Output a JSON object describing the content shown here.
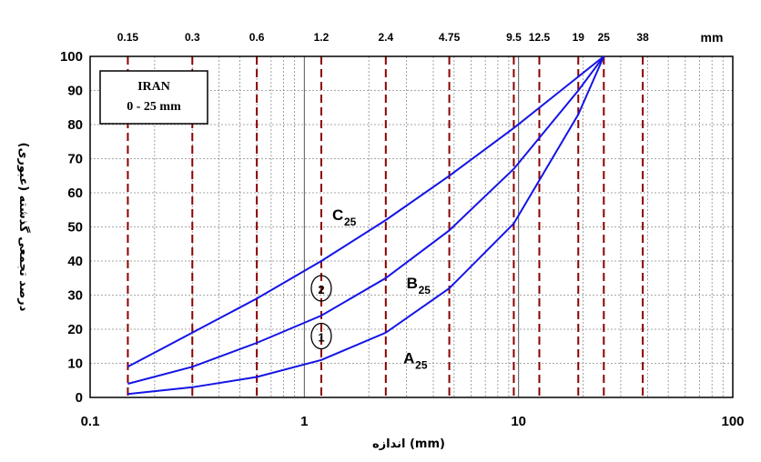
{
  "chart_data": {
    "type": "line",
    "x_scale": "log",
    "xlim": [
      0.1,
      100
    ],
    "ylim": [
      0,
      100
    ],
    "xticks": [
      "0.1",
      "1",
      "10",
      "100"
    ],
    "yticks": [
      "0",
      "10",
      "20",
      "30",
      "40",
      "50",
      "60",
      "70",
      "80",
      "90",
      "100"
    ],
    "xlabel": "اندازه (mm)",
    "ylabel": "درصد تجمعی گذشته (عبوری)",
    "top_unit": "mm",
    "grid": true,
    "sieve_sizes": [
      {
        "label": "0.15",
        "x": 0.15
      },
      {
        "label": "0.3",
        "x": 0.3
      },
      {
        "label": "0.6",
        "x": 0.6
      },
      {
        "label": "1.2",
        "x": 1.2
      },
      {
        "label": "2.4",
        "x": 2.4
      },
      {
        "label": "4.75",
        "x": 4.75
      },
      {
        "label": "9.5",
        "x": 9.5
      },
      {
        "label": "12.5",
        "x": 12.5
      },
      {
        "label": "19",
        "x": 19
      },
      {
        "label": "25",
        "x": 25
      },
      {
        "label": "38",
        "x": 38
      }
    ],
    "legend_box": {
      "line1": "IRAN",
      "line2": "0 - 25 mm",
      "placement": "top-left"
    },
    "series": [
      {
        "name": "C",
        "sub": "25",
        "color": "#1414e6",
        "x": [
          0.15,
          0.3,
          0.6,
          1.2,
          2.4,
          4.75,
          9.5,
          25
        ],
        "y": [
          9,
          19,
          29,
          40,
          52,
          65,
          79,
          100
        ]
      },
      {
        "name": "B",
        "sub": "25",
        "color": "#1414e6",
        "x": [
          0.15,
          0.3,
          0.6,
          1.2,
          2.4,
          4.75,
          9.5,
          19,
          25
        ],
        "y": [
          4,
          9,
          16,
          24,
          35,
          49,
          67,
          90,
          100
        ]
      },
      {
        "name": "A",
        "sub": "25",
        "color": "#1414e6",
        "x": [
          0.15,
          0.3,
          0.6,
          1.2,
          2.4,
          4.75,
          9.5,
          19,
          25
        ],
        "y": [
          1,
          3,
          6,
          11,
          19,
          32,
          51,
          83,
          100
        ]
      }
    ],
    "zone_markers": [
      "1",
      "2"
    ]
  }
}
